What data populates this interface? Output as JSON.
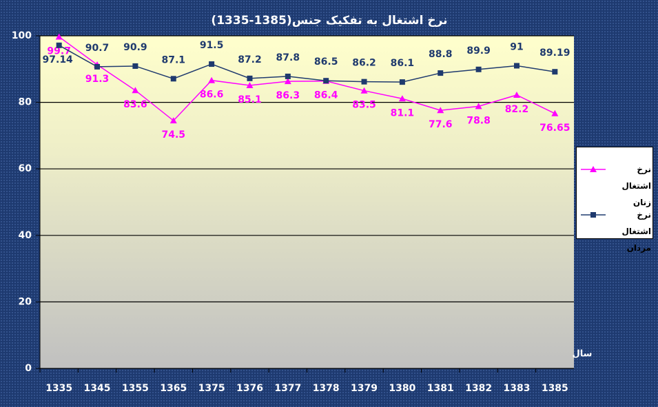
{
  "chart_data": {
    "type": "line",
    "title": "نرخ اشتغال به تفکیک جنس(1385-1335)",
    "x_label": "سال",
    "categories": [
      "1335",
      "1345",
      "1355",
      "1365",
      "1375",
      "1376",
      "1377",
      "1378",
      "1379",
      "1380",
      "1381",
      "1382",
      "1383",
      "1385"
    ],
    "series": [
      {
        "name": "نرخ اشتغال زنان",
        "color": "#ff00ff",
        "marker": "triangle",
        "values": [
          99.7,
          91.3,
          83.6,
          74.5,
          86.6,
          85.1,
          86.3,
          86.4,
          83.5,
          81.1,
          77.6,
          78.8,
          82.2,
          76.65
        ]
      },
      {
        "name": "نرخ اشتغال مردان",
        "color": "#1f3a6e",
        "marker": "square",
        "values": [
          97.14,
          90.7,
          90.9,
          87.1,
          91.5,
          87.2,
          87.8,
          86.5,
          86.2,
          86.1,
          88.8,
          89.9,
          91,
          89.19
        ]
      }
    ],
    "ylim": [
      0,
      100
    ],
    "yticks": [
      0,
      20,
      40,
      60,
      80,
      100
    ],
    "grid": true,
    "legend": "right"
  }
}
